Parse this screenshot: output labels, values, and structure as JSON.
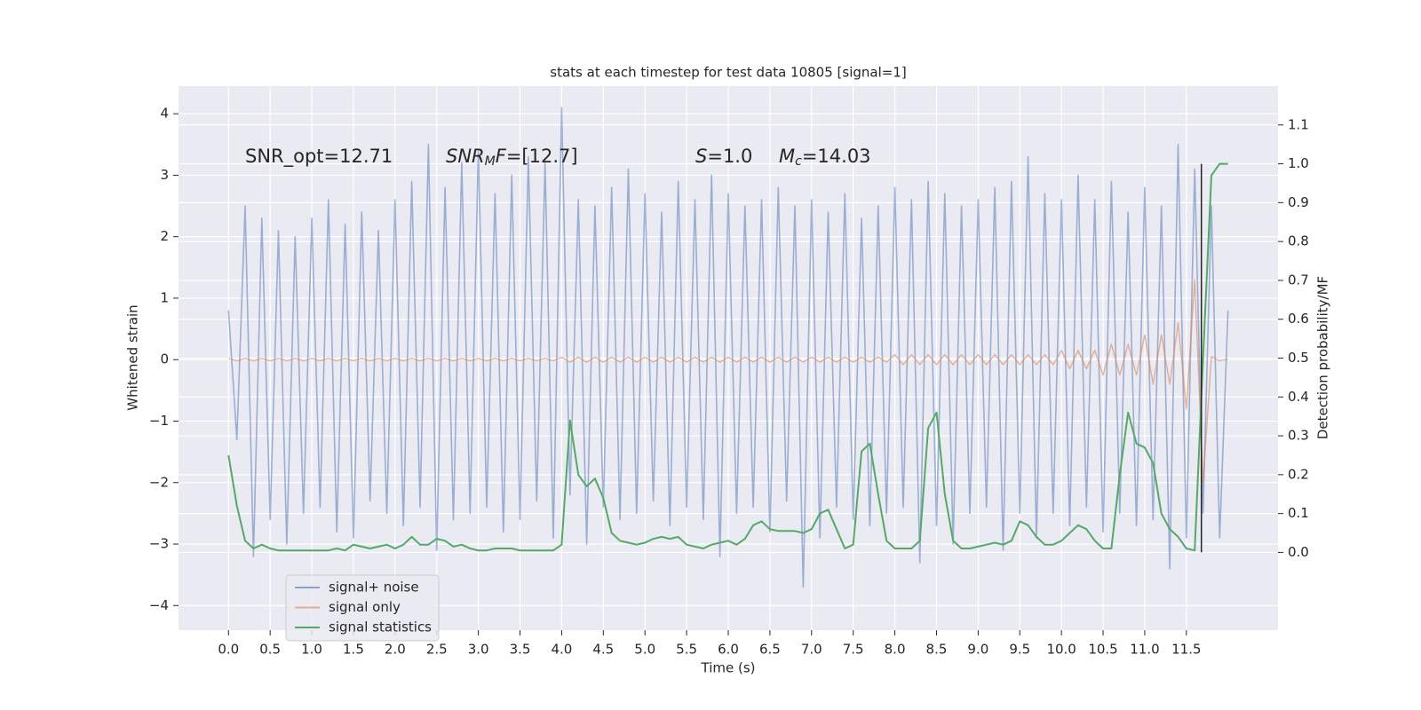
{
  "chart_data": {
    "type": "line",
    "title": "stats at each timestep for test data 10805 [signal=1]",
    "xlabel": "Time (s)",
    "ylabel": "Whitened strain",
    "y2label": "Detection probability/MF",
    "annotations": {
      "snr_opt": "SNR_opt=12.71",
      "snr_mf": [
        "SNR",
        "M",
        "F",
        "=[12.7]"
      ],
      "s": [
        "S",
        "=1.0"
      ],
      "mc": [
        "M",
        "c",
        "=14.03"
      ]
    },
    "xlim": [
      -0.6,
      12.6
    ],
    "ylim": [
      -4.4,
      4.45
    ],
    "y2lim": [
      -0.2,
      1.2
    ],
    "xticks": [
      {
        "value": 0,
        "label": "0.0"
      },
      0.5,
      {
        "value": 1,
        "label": "1.0"
      },
      1.5,
      {
        "value": 2,
        "label": "2.0"
      },
      2.5,
      {
        "value": 3,
        "label": "3.0"
      },
      3.5,
      {
        "value": 4,
        "label": "4.0"
      },
      4.5,
      {
        "value": 5,
        "label": "5.0"
      },
      5.5,
      {
        "value": 6,
        "label": "6.0"
      },
      6.5,
      {
        "value": 7,
        "label": "7.0"
      },
      7.5,
      {
        "value": 8,
        "label": "8.0"
      },
      8.5,
      {
        "value": 9,
        "label": "9.0"
      },
      9.5,
      {
        "value": 10,
        "label": "10.0"
      },
      10.5,
      {
        "value": 11,
        "label": "11.0"
      },
      11.5
    ],
    "yticks": [
      {
        "value": -4,
        "label": "−4"
      },
      {
        "value": -3,
        "label": "−3"
      },
      {
        "value": -2,
        "label": "−2"
      },
      {
        "value": -1,
        "label": "−1"
      },
      0,
      1,
      2,
      3,
      4
    ],
    "y2ticks": [
      {
        "value": 0,
        "label": "0.0"
      },
      0.1,
      0.2,
      0.3,
      0.4,
      0.5,
      0.6,
      0.7,
      0.8,
      0.9,
      {
        "value": 1,
        "label": "1.0"
      },
      1.1
    ],
    "grid": true,
    "legend": "lower left",
    "x": [
      0,
      0.1,
      0.2,
      0.3,
      0.4,
      0.5,
      0.6,
      0.7,
      0.8,
      0.9,
      1,
      1.1,
      1.2,
      1.3,
      1.4,
      1.5,
      1.6,
      1.7,
      1.8,
      1.9,
      2,
      2.1,
      2.2,
      2.3,
      2.4,
      2.5,
      2.6,
      2.7,
      2.8,
      2.9,
      3,
      3.1,
      3.2,
      3.3,
      3.4,
      3.5,
      3.6,
      3.7,
      3.8,
      3.9,
      4,
      4.1,
      4.2,
      4.3,
      4.4,
      4.5,
      4.6,
      4.7,
      4.8,
      4.9,
      5,
      5.1,
      5.2,
      5.3,
      5.4,
      5.5,
      5.6,
      5.7,
      5.8,
      5.9,
      6,
      6.1,
      6.2,
      6.3,
      6.4,
      6.5,
      6.6,
      6.7,
      6.8,
      6.9,
      7,
      7.1,
      7.2,
      7.3,
      7.4,
      7.5,
      7.6,
      7.7,
      7.8,
      7.9,
      8,
      8.1,
      8.2,
      8.3,
      8.4,
      8.5,
      8.6,
      8.7,
      8.8,
      8.9,
      9,
      9.1,
      9.2,
      9.3,
      9.4,
      9.5,
      9.6,
      9.7,
      9.8,
      9.9,
      10,
      10.1,
      10.2,
      10.3,
      10.4,
      10.5,
      10.6,
      10.7,
      10.8,
      10.9,
      11,
      11.1,
      11.2,
      11.3,
      11.4,
      11.5,
      11.6,
      11.7,
      11.8,
      11.9,
      12
    ],
    "series": [
      {
        "name": "signal+ noise",
        "color": "#4c72b0",
        "values": [
          0.8,
          -1.3,
          2.5,
          -3.2,
          2.3,
          -2.6,
          2.1,
          -3.0,
          2.0,
          -2.5,
          2.3,
          -2.4,
          2.6,
          -2.8,
          2.2,
          -2.9,
          2.4,
          -2.3,
          2.1,
          -2.5,
          2.6,
          -2.7,
          2.9,
          -2.4,
          3.5,
          -3.1,
          2.8,
          -2.6,
          3.2,
          -2.5,
          3.4,
          -2.4,
          2.7,
          -2.8,
          3.0,
          -2.6,
          3.3,
          -2.3,
          3.2,
          -2.9,
          4.1,
          -2.2,
          2.6,
          -3.0,
          2.5,
          -2.4,
          2.8,
          -2.6,
          3.1,
          -2.5,
          2.7,
          -2.3,
          2.4,
          -2.7,
          2.9,
          -2.4,
          2.6,
          -2.6,
          3.0,
          -3.2,
          2.7,
          -2.5,
          2.5,
          -2.4,
          2.6,
          -2.8,
          2.8,
          -2.3,
          2.5,
          -3.7,
          2.6,
          -2.9,
          2.4,
          -2.4,
          2.7,
          -2.6,
          2.3,
          -2.7,
          2.5,
          -2.5,
          2.8,
          -2.4,
          2.6,
          -3.3,
          2.9,
          -2.7,
          2.7,
          -3.0,
          2.5,
          -2.5,
          2.6,
          -2.4,
          2.8,
          -3.1,
          2.9,
          -2.5,
          3.3,
          -2.9,
          2.7,
          -2.5,
          2.6,
          -2.7,
          3.0,
          -2.4,
          2.6,
          -2.8,
          2.9,
          -2.5,
          2.4,
          -2.7,
          2.8,
          -2.6,
          2.5,
          -3.4,
          3.5,
          -2.9,
          3.1,
          -2.5,
          2.5,
          -2.9,
          0.8
        ]
      },
      {
        "name": "signal only",
        "color": "#dd8452",
        "values": [
          0.02,
          -0.02,
          0.02,
          -0.02,
          0.02,
          -0.02,
          0.02,
          -0.02,
          0.02,
          -0.02,
          0.02,
          -0.02,
          0.02,
          -0.02,
          0.02,
          -0.02,
          0.02,
          -0.02,
          0.02,
          -0.02,
          0.02,
          -0.02,
          0.02,
          -0.02,
          0.02,
          -0.02,
          0.02,
          -0.02,
          0.02,
          -0.02,
          0.02,
          -0.02,
          0.02,
          -0.02,
          0.02,
          -0.02,
          0.02,
          -0.02,
          0.02,
          -0.02,
          0.04,
          -0.04,
          0.04,
          -0.04,
          0.04,
          -0.04,
          0.04,
          -0.04,
          0.04,
          -0.04,
          0.04,
          -0.04,
          0.04,
          -0.04,
          0.04,
          -0.04,
          0.04,
          -0.04,
          0.04,
          -0.04,
          0.04,
          -0.04,
          0.04,
          -0.04,
          0.04,
          -0.04,
          0.04,
          -0.04,
          0.04,
          -0.04,
          0.04,
          -0.04,
          0.04,
          -0.04,
          0.04,
          -0.04,
          0.04,
          -0.04,
          0.04,
          -0.04,
          0.08,
          -0.08,
          0.08,
          -0.08,
          0.08,
          -0.08,
          0.08,
          -0.08,
          0.08,
          -0.08,
          0.08,
          -0.08,
          0.08,
          -0.08,
          0.08,
          -0.08,
          0.08,
          -0.08,
          0.08,
          -0.08,
          0.15,
          -0.15,
          0.15,
          -0.15,
          0.15,
          -0.25,
          0.25,
          -0.25,
          0.25,
          -0.25,
          0.4,
          -0.4,
          0.4,
          -0.4,
          0.6,
          -0.8,
          1.3,
          -2.0,
          0.05,
          -0.02,
          0.01
        ]
      },
      {
        "name": "signal statistics",
        "color": "#55a868",
        "axis": "y2",
        "values": [
          0.25,
          0.12,
          0.03,
          0.01,
          0.02,
          0.01,
          0.005,
          0.005,
          0.005,
          0.005,
          0.005,
          0.005,
          0.005,
          0.01,
          0.005,
          0.02,
          0.015,
          0.01,
          0.015,
          0.02,
          0.01,
          0.02,
          0.04,
          0.02,
          0.02,
          0.035,
          0.03,
          0.015,
          0.02,
          0.01,
          0.005,
          0.005,
          0.01,
          0.01,
          0.01,
          0.005,
          0.005,
          0.005,
          0.005,
          0.005,
          0.02,
          0.34,
          0.2,
          0.17,
          0.19,
          0.14,
          0.05,
          0.03,
          0.025,
          0.02,
          0.025,
          0.035,
          0.04,
          0.035,
          0.04,
          0.02,
          0.015,
          0.01,
          0.02,
          0.025,
          0.03,
          0.02,
          0.035,
          0.07,
          0.08,
          0.06,
          0.055,
          0.055,
          0.055,
          0.05,
          0.06,
          0.1,
          0.11,
          0.06,
          0.01,
          0.02,
          0.26,
          0.28,
          0.15,
          0.03,
          0.01,
          0.01,
          0.01,
          0.03,
          0.32,
          0.36,
          0.15,
          0.03,
          0.01,
          0.01,
          0.015,
          0.02,
          0.025,
          0.02,
          0.03,
          0.08,
          0.07,
          0.04,
          0.02,
          0.02,
          0.03,
          0.05,
          0.07,
          0.06,
          0.03,
          0.01,
          0.01,
          0.2,
          0.36,
          0.28,
          0.27,
          0.23,
          0.1,
          0.06,
          0.04,
          0.01,
          0.005,
          0.5,
          0.97,
          1.0,
          1.0
        ]
      }
    ],
    "merger_line": {
      "x": 11.68,
      "y2": [
        0,
        1
      ],
      "color": "#262626"
    }
  }
}
